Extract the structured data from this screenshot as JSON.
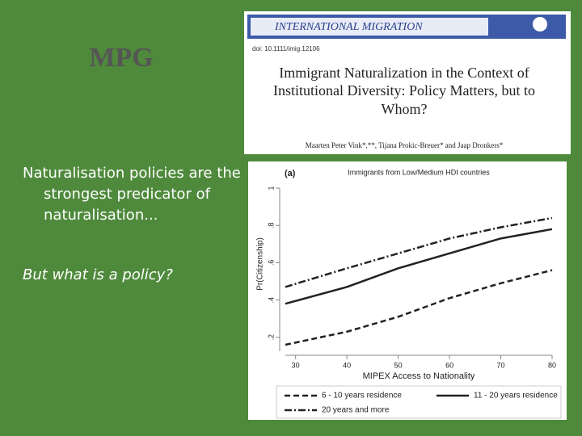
{
  "logo": "MPG",
  "paper": {
    "journal": "INTERNATIONAL MIGRATION",
    "doi": "doi: 10.1111/imig.12106",
    "title": [
      "Immigrant Naturalization in the Context of",
      "Institutional Diversity: Policy Matters, but to",
      "Whom?"
    ],
    "authors": "Maarten Peter Vink*,**, Tijana Prokic-Breuer* and Jaap Dronkers*"
  },
  "bullets": [
    "Naturalisation policies are the strongest predicator of naturalisation...",
    "But what is a policy?"
  ],
  "chart_data": {
    "type": "line",
    "panel": "(a)",
    "title": "Immigrants from Low/Medium HDI countries",
    "x_label": "MIPEX Access to Nationality",
    "y_label": "Pr(Citizenship)",
    "x": [
      28,
      40,
      50,
      60,
      70,
      80
    ],
    "series": [
      {
        "name": "6 - 10 years residence",
        "color": "#222222",
        "style": "dashed",
        "values": [
          0.16,
          0.23,
          0.31,
          0.41,
          0.49,
          0.56
        ]
      },
      {
        "name": "11 - 20 years residence",
        "color": "#222222",
        "style": "solid",
        "values": [
          0.38,
          0.47,
          0.57,
          0.65,
          0.73,
          0.78
        ]
      },
      {
        "name": "20 years and more",
        "color": "#222222",
        "style": "dashdot",
        "values": [
          0.47,
          0.57,
          0.65,
          0.73,
          0.79,
          0.84
        ]
      }
    ],
    "xlim": [
      28,
      80
    ],
    "xticks": [
      30,
      40,
      50,
      60,
      70,
      80
    ],
    "ylim": [
      0.16,
      1
    ],
    "yticks": [
      {
        "value": 0.2,
        "label": ".2"
      },
      {
        "value": 0.4,
        "label": ".4"
      },
      {
        "value": 0.6,
        "label": ".6"
      },
      {
        "value": 0.8,
        "label": ".8"
      },
      1
    ]
  }
}
